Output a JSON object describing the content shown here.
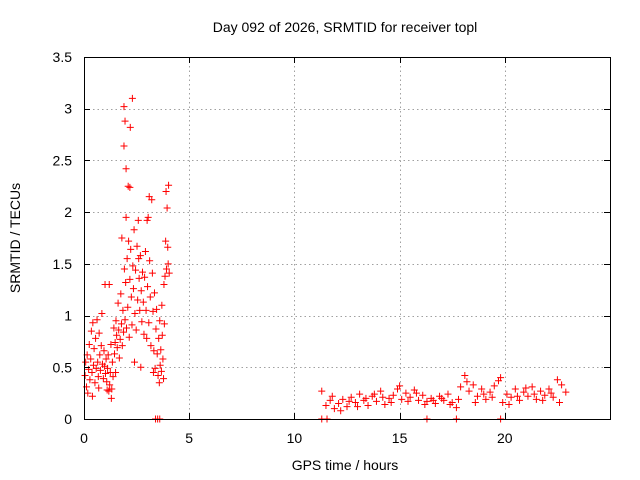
{
  "colors": {
    "series": "#ff0000",
    "grid": "#a0a0a0",
    "frame": "#000000"
  },
  "chart_data": {
    "type": "scatter",
    "title": "Day 092 of 2026, SRMTID for receiver topl",
    "xlabel": "GPS time / hours",
    "ylabel": "SRMTID / TECUs",
    "xlim": [
      0,
      25
    ],
    "ylim": [
      0,
      3.5
    ],
    "xticks": [
      0,
      5,
      10,
      15,
      20
    ],
    "xtick_labels": [
      "0",
      "5",
      "10",
      "15",
      "20"
    ],
    "yticks": [
      0,
      0.5,
      1,
      1.5,
      2,
      2.5,
      3,
      3.5
    ],
    "ytick_labels": [
      "0",
      "0.5",
      "1",
      "1.5",
      "2",
      "2.5",
      "3",
      "3.5"
    ],
    "grid": true,
    "marker": "plus",
    "series": [
      {
        "name": "SRMTID",
        "points": [
          [
            0.05,
            0.42
          ],
          [
            0.08,
            0.55
          ],
          [
            0.12,
            0.31
          ],
          [
            0.15,
            0.62
          ],
          [
            0.18,
            0.25
          ],
          [
            0.22,
            0.48
          ],
          [
            0.25,
            0.72
          ],
          [
            0.28,
            0.38
          ],
          [
            0.32,
            0.58
          ],
          [
            0.35,
            0.85
          ],
          [
            0.38,
            0.45
          ],
          [
            0.42,
            0.93
          ],
          [
            0.45,
            0.52
          ],
          [
            0.48,
            0.68
          ],
          [
            0.52,
            0.35
          ],
          [
            0.55,
            0.78
          ],
          [
            0.58,
            0.49
          ],
          [
            0.62,
            0.96
          ],
          [
            0.65,
            0.55
          ],
          [
            0.68,
            0.41
          ],
          [
            0.72,
            0.83
          ],
          [
            0.75,
            0.62
          ],
          [
            0.78,
            0.47
          ],
          [
            0.82,
            0.71
          ],
          [
            0.85,
            1.02
          ],
          [
            0.88,
            0.53
          ],
          [
            0.92,
            0.39
          ],
          [
            0.95,
            0.66
          ],
          [
            0.98,
            0.51
          ],
          [
            1.02,
            0.44
          ],
          [
            1.05,
            0.58
          ],
          [
            1.08,
            0.36
          ],
          [
            1.12,
            0.49
          ],
          [
            1.15,
            0.62
          ],
          [
            1.18,
            0.27
          ],
          [
            1.22,
            0.33
          ],
          [
            1.25,
            0.45
          ],
          [
            1.28,
            0.72
          ],
          [
            1.32,
            0.29
          ],
          [
            1.35,
            0.55
          ],
          [
            1.38,
            0.41
          ],
          [
            1.42,
            0.88
          ],
          [
            1.45,
            0.63
          ],
          [
            1.48,
            0.74
          ],
          [
            1.52,
            0.95
          ],
          [
            1.55,
            0.81
          ],
          [
            1.58,
            0.69
          ],
          [
            1.62,
            1.12
          ],
          [
            1.65,
            0.86
          ],
          [
            1.68,
            0.59
          ],
          [
            1.72,
            0.77
          ],
          [
            1.75,
            1.21
          ],
          [
            1.78,
            0.92
          ],
          [
            1.82,
            0.71
          ],
          [
            1.85,
            1.05
          ],
          [
            1.88,
            0.84
          ],
          [
            1.92,
            1.45
          ],
          [
            1.95,
            0.96
          ],
          [
            1.98,
            1.32
          ],
          [
            2.02,
            0.88
          ],
          [
            2.05,
            1.55
          ],
          [
            2.08,
            1.08
          ],
          [
            2.12,
            1.72
          ],
          [
            2.15,
            0.79
          ],
          [
            2.18,
            1.35
          ],
          [
            2.22,
            1.64
          ],
          [
            2.25,
            1.18
          ],
          [
            2.28,
            0.91
          ],
          [
            2.32,
            1.48
          ],
          [
            2.35,
            1.26
          ],
          [
            2.38,
            1.83
          ],
          [
            2.42,
            1.02
          ],
          [
            2.45,
            1.44
          ],
          [
            2.48,
            0.86
          ],
          [
            2.52,
            1.67
          ],
          [
            2.55,
            1.15
          ],
          [
            2.58,
            1.92
          ],
          [
            2.62,
            1.36
          ],
          [
            2.65,
            1.05
          ],
          [
            2.68,
            1.58
          ],
          [
            2.72,
            1.24
          ],
          [
            2.75,
            0.94
          ],
          [
            2.78,
            1.42
          ],
          [
            2.82,
            1.13
          ],
          [
            2.85,
            0.82
          ],
          [
            2.88,
            1.37
          ],
          [
            2.92,
            1.62
          ],
          [
            2.95,
            1.05
          ],
          [
            2.98,
            0.78
          ],
          [
            3.02,
            1.28
          ],
          [
            3.05,
            1.95
          ],
          [
            3.08,
            0.93
          ],
          [
            3.12,
            1.53
          ],
          [
            3.15,
            1.18
          ],
          [
            3.18,
            0.71
          ],
          [
            3.22,
            2.12
          ],
          [
            3.25,
            1.41
          ],
          [
            3.28,
            1.04
          ],
          [
            3.32,
            0.66
          ],
          [
            3.35,
            1.22
          ],
          [
            3.38,
            0.49
          ],
          [
            3.42,
            0.87
          ],
          [
            3.45,
            1.06
          ],
          [
            3.48,
            0.63
          ],
          [
            3.52,
            0.42
          ],
          [
            3.55,
            0.78
          ],
          [
            3.58,
            0.35
          ],
          [
            3.62,
            0.52
          ],
          [
            3.65,
            0.67
          ],
          [
            3.68,
            0.46
          ],
          [
            3.72,
            0.81
          ],
          [
            3.75,
            0.58
          ],
          [
            3.78,
            0.39
          ],
          [
            3.82,
            0.92
          ],
          [
            3.85,
            1.38
          ],
          [
            3.88,
            1.72
          ],
          [
            3.92,
            1.45
          ],
          [
            3.95,
            2.04
          ],
          [
            3.98,
            1.66
          ],
          [
            4.02,
            2.26
          ],
          [
            4.05,
            1.41
          ],
          [
            0.4,
            0.22
          ],
          [
            0.7,
            0.3
          ],
          [
            1.1,
            0.28
          ],
          [
            1.3,
            0.2
          ],
          [
            1.5,
            0.45
          ],
          [
            1.2,
            1.3
          ],
          [
            1.0,
            1.3
          ],
          [
            1.8,
            1.75
          ],
          [
            2.0,
            1.95
          ],
          [
            2.1,
            2.25
          ],
          [
            2.2,
            2.82
          ],
          [
            1.9,
            2.64
          ],
          [
            1.95,
            2.88
          ],
          [
            2.3,
            3.1
          ],
          [
            1.9,
            3.02
          ],
          [
            2.0,
            2.42
          ],
          [
            2.18,
            2.24
          ],
          [
            3.1,
            2.15
          ],
          [
            3.0,
            1.92
          ],
          [
            2.6,
            1.55
          ],
          [
            3.9,
            2.2
          ],
          [
            4.0,
            1.5
          ],
          [
            3.8,
            1.3
          ],
          [
            3.7,
            1.1
          ],
          [
            3.6,
            0.95
          ],
          [
            2.4,
            0.55
          ],
          [
            2.7,
            0.5
          ],
          [
            3.3,
            0.45
          ],
          [
            3.4,
            0.0
          ],
          [
            3.5,
            0.0
          ],
          [
            3.6,
            0.0
          ],
          [
            11.3,
            0.0
          ],
          [
            11.55,
            0.0
          ],
          [
            16.3,
            0.0
          ],
          [
            17.7,
            0.0
          ],
          [
            19.8,
            0.0
          ],
          [
            11.3,
            0.27
          ],
          [
            11.5,
            0.13
          ],
          [
            11.7,
            0.18
          ],
          [
            11.9,
            0.1
          ],
          [
            12.1,
            0.15
          ],
          [
            12.3,
            0.19
          ],
          [
            12.5,
            0.12
          ],
          [
            12.7,
            0.21
          ],
          [
            12.9,
            0.16
          ],
          [
            13.1,
            0.24
          ],
          [
            13.3,
            0.18
          ],
          [
            13.5,
            0.13
          ],
          [
            13.7,
            0.22
          ],
          [
            13.9,
            0.17
          ],
          [
            14.1,
            0.27
          ],
          [
            14.3,
            0.14
          ],
          [
            14.5,
            0.2
          ],
          [
            14.7,
            0.23
          ],
          [
            14.9,
            0.29
          ],
          [
            15.1,
            0.19
          ],
          [
            15.3,
            0.25
          ],
          [
            15.5,
            0.21
          ],
          [
            15.7,
            0.28
          ],
          [
            15.9,
            0.18
          ],
          [
            16.1,
            0.23
          ],
          [
            16.3,
            0.17
          ],
          [
            16.5,
            0.2
          ],
          [
            16.7,
            0.15
          ],
          [
            16.9,
            0.22
          ],
          [
            17.1,
            0.18
          ],
          [
            17.3,
            0.24
          ],
          [
            17.5,
            0.16
          ],
          [
            17.7,
            0.11
          ],
          [
            17.9,
            0.31
          ],
          [
            18.1,
            0.42
          ],
          [
            18.3,
            0.27
          ],
          [
            18.5,
            0.33
          ],
          [
            18.7,
            0.22
          ],
          [
            18.9,
            0.29
          ],
          [
            19.1,
            0.19
          ],
          [
            19.3,
            0.26
          ],
          [
            19.5,
            0.32
          ],
          [
            19.7,
            0.37
          ],
          [
            19.9,
            0.16
          ],
          [
            20.1,
            0.24
          ],
          [
            20.3,
            0.21
          ],
          [
            20.5,
            0.29
          ],
          [
            20.7,
            0.18
          ],
          [
            20.9,
            0.26
          ],
          [
            21.1,
            0.22
          ],
          [
            21.3,
            0.31
          ],
          [
            21.5,
            0.19
          ],
          [
            21.7,
            0.27
          ],
          [
            21.9,
            0.23
          ],
          [
            22.1,
            0.29
          ],
          [
            22.3,
            0.21
          ],
          [
            22.5,
            0.38
          ],
          [
            22.7,
            0.33
          ],
          [
            22.9,
            0.26
          ],
          [
            11.8,
            0.22
          ],
          [
            12.2,
            0.08
          ],
          [
            12.6,
            0.17
          ],
          [
            13.0,
            0.12
          ],
          [
            13.4,
            0.2
          ],
          [
            13.8,
            0.24
          ],
          [
            14.2,
            0.21
          ],
          [
            14.6,
            0.16
          ],
          [
            15.0,
            0.32
          ],
          [
            15.4,
            0.17
          ],
          [
            15.8,
            0.25
          ],
          [
            16.2,
            0.14
          ],
          [
            16.6,
            0.18
          ],
          [
            17.0,
            0.2
          ],
          [
            17.4,
            0.14
          ],
          [
            17.8,
            0.19
          ],
          [
            18.2,
            0.36
          ],
          [
            18.6,
            0.16
          ],
          [
            19.0,
            0.24
          ],
          [
            19.4,
            0.21
          ],
          [
            19.8,
            0.4
          ],
          [
            20.2,
            0.14
          ],
          [
            20.6,
            0.22
          ],
          [
            21.0,
            0.3
          ],
          [
            21.4,
            0.24
          ],
          [
            21.8,
            0.18
          ],
          [
            22.2,
            0.25
          ],
          [
            22.6,
            0.16
          ]
        ]
      }
    ]
  }
}
